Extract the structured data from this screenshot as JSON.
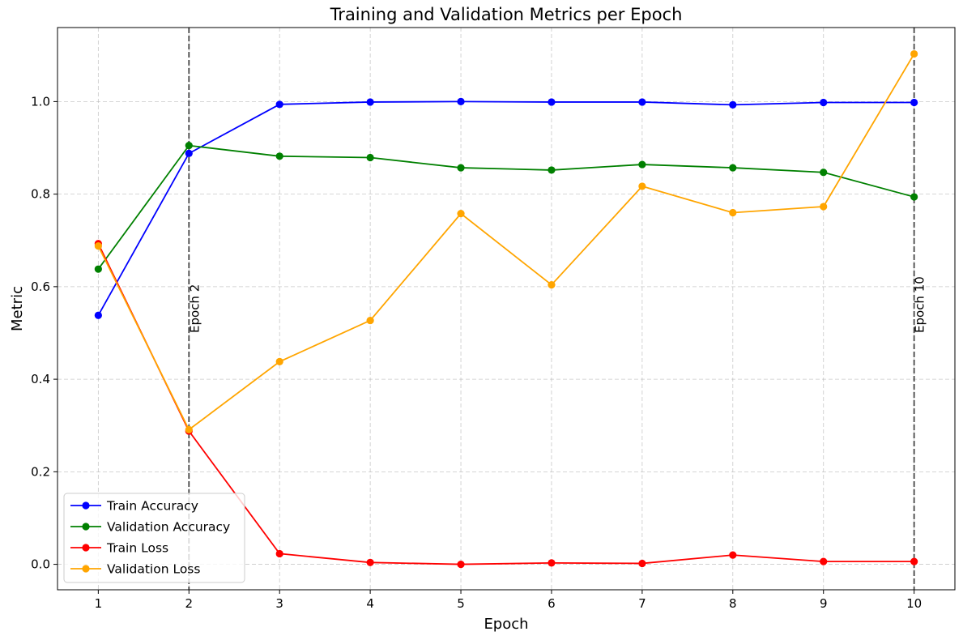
{
  "chart_data": {
    "type": "line",
    "title": "Training and Validation Metrics per Epoch",
    "xlabel": "Epoch",
    "ylabel": "Metric",
    "x": [
      1,
      2,
      3,
      4,
      5,
      6,
      7,
      8,
      9,
      10
    ],
    "xlim": [
      0.55,
      10.45
    ],
    "ylim": [
      -0.055,
      1.16
    ],
    "xticks": [
      1,
      2,
      3,
      4,
      5,
      6,
      7,
      8,
      9,
      10
    ],
    "yticks": [
      0.0,
      0.2,
      0.4,
      0.6,
      0.8,
      1.0
    ],
    "ytick_labels": [
      "0.0",
      "0.2",
      "0.4",
      "0.6",
      "0.8",
      "1.0"
    ],
    "grid": true,
    "legend_position": "bottom-left",
    "series": [
      {
        "name": "Train Accuracy",
        "color": "#0000ff",
        "values": [
          0.538,
          0.888,
          0.994,
          0.999,
          1.0,
          0.999,
          0.999,
          0.993,
          0.998,
          0.998
        ]
      },
      {
        "name": "Validation Accuracy",
        "color": "#008000",
        "values": [
          0.638,
          0.905,
          0.882,
          0.879,
          0.857,
          0.852,
          0.864,
          0.857,
          0.847,
          0.794
        ]
      },
      {
        "name": "Train Loss",
        "color": "#ff0000",
        "values": [
          0.693,
          0.288,
          0.023,
          0.004,
          0.0,
          0.003,
          0.002,
          0.02,
          0.006,
          0.006
        ]
      },
      {
        "name": "Validation Loss",
        "color": "#ffa500",
        "values": [
          0.688,
          0.291,
          0.438,
          0.527,
          0.758,
          0.604,
          0.817,
          0.76,
          0.773,
          1.103
        ]
      }
    ],
    "vertical_lines": [
      {
        "x": 2,
        "label": "Epoch 2"
      },
      {
        "x": 10,
        "label": "Epoch 10"
      }
    ]
  }
}
